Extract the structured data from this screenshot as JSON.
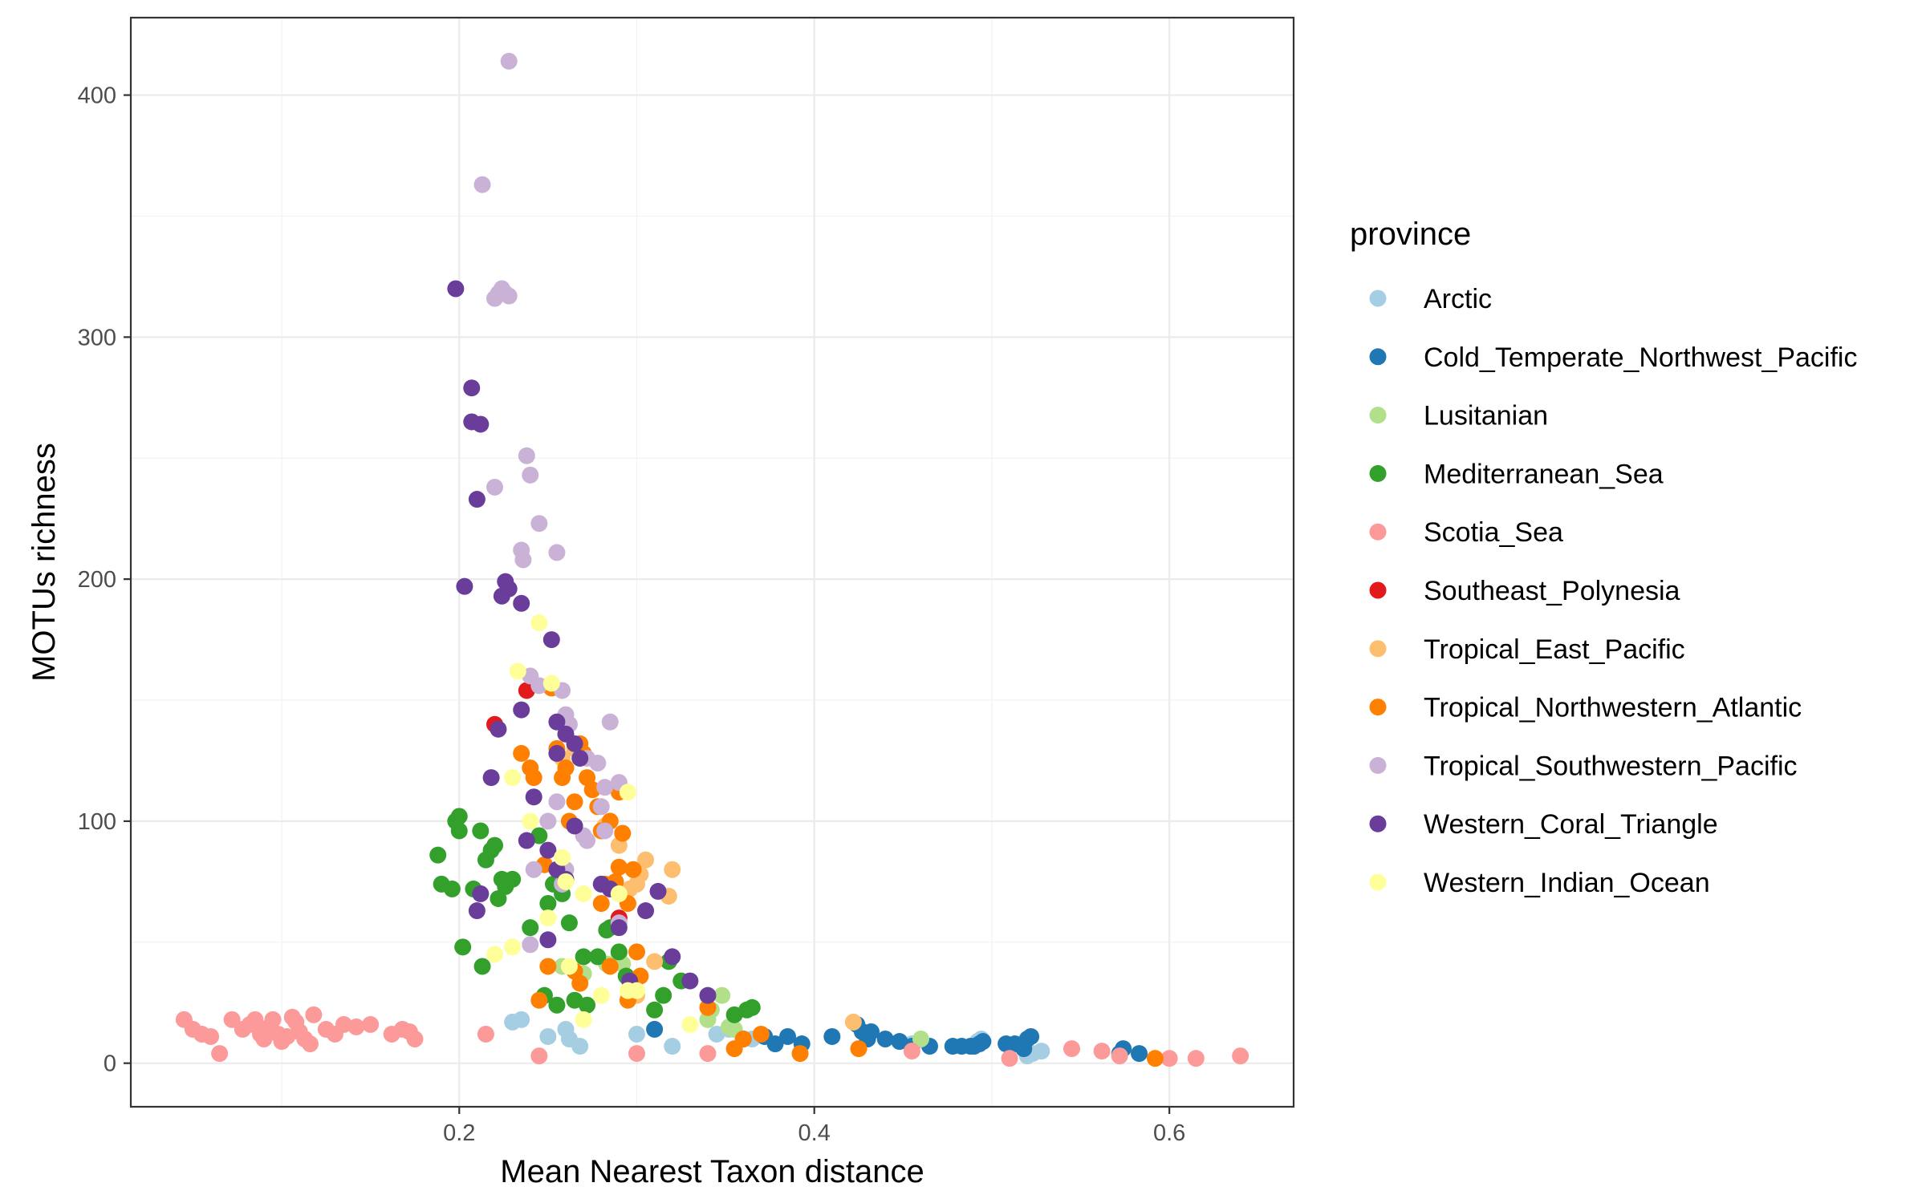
{
  "chart_data": {
    "type": "scatter",
    "title": "",
    "xlabel": "Mean Nearest Taxon distance",
    "ylabel": "MOTUs richness",
    "xlim": [
      0.015,
      0.67
    ],
    "ylim": [
      -18,
      432
    ],
    "x_ticks": [
      0.2,
      0.4,
      0.6
    ],
    "x_tick_labels": [
      "0.2",
      "0.4",
      "0.6"
    ],
    "y_ticks": [
      0,
      100,
      200,
      300,
      400
    ],
    "y_tick_labels": [
      "0",
      "100",
      "200",
      "300",
      "400"
    ],
    "grid": true,
    "legend_title": "province",
    "legend_position": "right",
    "series": [
      {
        "name": "Arctic",
        "color": "#A6CEE3",
        "points": [
          [
            0.23,
            17
          ],
          [
            0.235,
            18
          ],
          [
            0.25,
            11
          ],
          [
            0.26,
            14
          ],
          [
            0.262,
            10
          ],
          [
            0.268,
            7
          ],
          [
            0.3,
            12
          ],
          [
            0.32,
            7
          ],
          [
            0.345,
            12
          ],
          [
            0.352,
            14
          ],
          [
            0.365,
            10
          ],
          [
            0.52,
            3
          ],
          [
            0.523,
            4
          ],
          [
            0.528,
            5
          ],
          [
            0.492,
            9
          ],
          [
            0.494,
            10
          ],
          [
            0.455,
            8
          ]
        ]
      },
      {
        "name": "Cold_Temperate_Northwest_Pacific",
        "color": "#1F78B4",
        "points": [
          [
            0.31,
            14
          ],
          [
            0.36,
            10
          ],
          [
            0.372,
            11
          ],
          [
            0.378,
            8
          ],
          [
            0.385,
            11
          ],
          [
            0.393,
            8
          ],
          [
            0.41,
            11
          ],
          [
            0.424,
            16
          ],
          [
            0.427,
            13
          ],
          [
            0.43,
            10
          ],
          [
            0.432,
            13
          ],
          [
            0.44,
            10
          ],
          [
            0.448,
            9
          ],
          [
            0.455,
            7
          ],
          [
            0.465,
            7
          ],
          [
            0.478,
            7
          ],
          [
            0.483,
            7
          ],
          [
            0.488,
            7
          ],
          [
            0.49,
            7
          ],
          [
            0.493,
            8
          ],
          [
            0.495,
            9
          ],
          [
            0.508,
            8
          ],
          [
            0.513,
            8
          ],
          [
            0.518,
            6
          ],
          [
            0.522,
            11
          ],
          [
            0.52,
            10
          ],
          [
            0.572,
            4
          ],
          [
            0.574,
            6
          ],
          [
            0.583,
            4
          ]
        ]
      },
      {
        "name": "Lusitanian",
        "color": "#B2DF8A",
        "points": [
          [
            0.258,
            40
          ],
          [
            0.27,
            37
          ],
          [
            0.283,
            41
          ],
          [
            0.29,
            45
          ],
          [
            0.292,
            41
          ],
          [
            0.34,
            18
          ],
          [
            0.342,
            22
          ],
          [
            0.348,
            28
          ],
          [
            0.352,
            15
          ],
          [
            0.355,
            14
          ],
          [
            0.46,
            10
          ]
        ]
      },
      {
        "name": "Mediterranean_Sea",
        "color": "#33A02C",
        "points": [
          [
            0.188,
            86
          ],
          [
            0.19,
            74
          ],
          [
            0.196,
            72
          ],
          [
            0.198,
            100
          ],
          [
            0.2,
            102
          ],
          [
            0.2,
            96
          ],
          [
            0.202,
            48
          ],
          [
            0.208,
            72
          ],
          [
            0.212,
            96
          ],
          [
            0.213,
            40
          ],
          [
            0.215,
            84
          ],
          [
            0.218,
            88
          ],
          [
            0.22,
            90
          ],
          [
            0.222,
            68
          ],
          [
            0.224,
            76
          ],
          [
            0.226,
            73
          ],
          [
            0.23,
            76
          ],
          [
            0.24,
            56
          ],
          [
            0.245,
            94
          ],
          [
            0.248,
            28
          ],
          [
            0.25,
            66
          ],
          [
            0.253,
            74
          ],
          [
            0.255,
            24
          ],
          [
            0.258,
            70
          ],
          [
            0.262,
            58
          ],
          [
            0.265,
            26
          ],
          [
            0.27,
            44
          ],
          [
            0.272,
            24
          ],
          [
            0.278,
            44
          ],
          [
            0.283,
            55
          ],
          [
            0.285,
            56
          ],
          [
            0.29,
            46
          ],
          [
            0.294,
            36
          ],
          [
            0.31,
            22
          ],
          [
            0.315,
            28
          ],
          [
            0.318,
            42
          ],
          [
            0.325,
            34
          ],
          [
            0.355,
            20
          ],
          [
            0.362,
            22
          ],
          [
            0.365,
            23
          ]
        ]
      },
      {
        "name": "Scotia_Sea",
        "color": "#FB9A99",
        "points": [
          [
            0.045,
            18
          ],
          [
            0.05,
            14
          ],
          [
            0.055,
            12
          ],
          [
            0.06,
            11
          ],
          [
            0.065,
            4
          ],
          [
            0.072,
            18
          ],
          [
            0.078,
            14
          ],
          [
            0.082,
            16
          ],
          [
            0.085,
            18
          ],
          [
            0.088,
            12
          ],
          [
            0.09,
            10
          ],
          [
            0.093,
            15
          ],
          [
            0.095,
            18
          ],
          [
            0.098,
            12
          ],
          [
            0.1,
            9
          ],
          [
            0.103,
            11
          ],
          [
            0.106,
            19
          ],
          [
            0.108,
            17
          ],
          [
            0.11,
            13
          ],
          [
            0.113,
            10
          ],
          [
            0.116,
            8
          ],
          [
            0.118,
            20
          ],
          [
            0.125,
            14
          ],
          [
            0.13,
            12
          ],
          [
            0.135,
            16
          ],
          [
            0.142,
            15
          ],
          [
            0.15,
            16
          ],
          [
            0.162,
            12
          ],
          [
            0.168,
            14
          ],
          [
            0.172,
            13
          ],
          [
            0.175,
            10
          ],
          [
            0.215,
            12
          ],
          [
            0.245,
            3
          ],
          [
            0.3,
            4
          ],
          [
            0.34,
            4
          ],
          [
            0.455,
            5
          ],
          [
            0.51,
            2
          ],
          [
            0.545,
            6
          ],
          [
            0.562,
            5
          ],
          [
            0.572,
            3
          ],
          [
            0.6,
            2
          ],
          [
            0.615,
            2
          ],
          [
            0.64,
            3
          ]
        ]
      },
      {
        "name": "Southeast_Polynesia",
        "color": "#E31A1C",
        "points": [
          [
            0.22,
            140
          ],
          [
            0.238,
            154
          ],
          [
            0.29,
            60
          ]
        ]
      },
      {
        "name": "Tropical_East_Pacific",
        "color": "#FDBF6F",
        "points": [
          [
            0.258,
            126
          ],
          [
            0.265,
            130
          ],
          [
            0.282,
            98
          ],
          [
            0.29,
            90
          ],
          [
            0.292,
            70
          ],
          [
            0.296,
            72
          ],
          [
            0.3,
            74
          ],
          [
            0.302,
            78
          ],
          [
            0.305,
            84
          ],
          [
            0.31,
            42
          ],
          [
            0.318,
            69
          ],
          [
            0.32,
            80
          ],
          [
            0.3,
            28
          ],
          [
            0.422,
            17
          ]
        ]
      },
      {
        "name": "Tropical_Northwestern_Atlantic",
        "color": "#FF7F00",
        "points": [
          [
            0.235,
            128
          ],
          [
            0.24,
            122
          ],
          [
            0.242,
            118
          ],
          [
            0.248,
            82
          ],
          [
            0.25,
            40
          ],
          [
            0.252,
            155
          ],
          [
            0.255,
            130
          ],
          [
            0.258,
            118
          ],
          [
            0.26,
            122
          ],
          [
            0.262,
            100
          ],
          [
            0.265,
            108
          ],
          [
            0.268,
            132
          ],
          [
            0.27,
            128
          ],
          [
            0.272,
            118
          ],
          [
            0.275,
            113
          ],
          [
            0.278,
            106
          ],
          [
            0.28,
            96
          ],
          [
            0.282,
            74
          ],
          [
            0.285,
            100
          ],
          [
            0.288,
            75
          ],
          [
            0.29,
            112
          ],
          [
            0.292,
            95
          ],
          [
            0.295,
            66
          ],
          [
            0.298,
            80
          ],
          [
            0.3,
            46
          ],
          [
            0.302,
            36
          ],
          [
            0.29,
            81
          ],
          [
            0.295,
            26
          ],
          [
            0.285,
            40
          ],
          [
            0.28,
            66
          ],
          [
            0.245,
            26
          ],
          [
            0.265,
            38
          ],
          [
            0.268,
            33
          ],
          [
            0.34,
            23
          ],
          [
            0.355,
            6
          ],
          [
            0.36,
            10
          ],
          [
            0.37,
            12
          ],
          [
            0.392,
            4
          ],
          [
            0.425,
            6
          ],
          [
            0.592,
            2
          ]
        ]
      },
      {
        "name": "Tropical_Southwestern_Pacific",
        "color": "#CAB2D6",
        "points": [
          [
            0.228,
            414
          ],
          [
            0.213,
            363
          ],
          [
            0.22,
            316
          ],
          [
            0.222,
            318
          ],
          [
            0.224,
            320
          ],
          [
            0.226,
            318
          ],
          [
            0.228,
            317
          ],
          [
            0.238,
            251
          ],
          [
            0.24,
            243
          ],
          [
            0.22,
            238
          ],
          [
            0.245,
            223
          ],
          [
            0.235,
            212
          ],
          [
            0.255,
            211
          ],
          [
            0.236,
            208
          ],
          [
            0.24,
            160
          ],
          [
            0.245,
            156
          ],
          [
            0.258,
            154
          ],
          [
            0.26,
            144
          ],
          [
            0.262,
            140
          ],
          [
            0.285,
            141
          ],
          [
            0.29,
            116
          ],
          [
            0.272,
            126
          ],
          [
            0.278,
            124
          ],
          [
            0.282,
            114
          ],
          [
            0.28,
            106
          ],
          [
            0.255,
            108
          ],
          [
            0.25,
            100
          ],
          [
            0.282,
            96
          ],
          [
            0.27,
            94
          ],
          [
            0.242,
            80
          ],
          [
            0.26,
            80
          ],
          [
            0.29,
            58
          ],
          [
            0.24,
            49
          ],
          [
            0.258,
            74
          ],
          [
            0.272,
            92
          ]
        ]
      },
      {
        "name": "Western_Coral_Triangle",
        "color": "#6A3D9A",
        "points": [
          [
            0.198,
            320
          ],
          [
            0.207,
            279
          ],
          [
            0.207,
            265
          ],
          [
            0.212,
            264
          ],
          [
            0.21,
            233
          ],
          [
            0.203,
            197
          ],
          [
            0.226,
            199
          ],
          [
            0.228,
            196
          ],
          [
            0.224,
            193
          ],
          [
            0.235,
            190
          ],
          [
            0.252,
            175
          ],
          [
            0.222,
            138
          ],
          [
            0.235,
            146
          ],
          [
            0.238,
            92
          ],
          [
            0.242,
            110
          ],
          [
            0.255,
            141
          ],
          [
            0.26,
            136
          ],
          [
            0.265,
            132
          ],
          [
            0.268,
            126
          ],
          [
            0.255,
            128
          ],
          [
            0.218,
            118
          ],
          [
            0.212,
            70
          ],
          [
            0.21,
            63
          ],
          [
            0.25,
            88
          ],
          [
            0.255,
            80
          ],
          [
            0.25,
            51
          ],
          [
            0.26,
            76
          ],
          [
            0.265,
            98
          ],
          [
            0.28,
            74
          ],
          [
            0.285,
            72
          ],
          [
            0.29,
            56
          ],
          [
            0.296,
            34
          ],
          [
            0.305,
            63
          ],
          [
            0.312,
            71
          ],
          [
            0.32,
            44
          ],
          [
            0.33,
            34
          ],
          [
            0.34,
            28
          ]
        ]
      },
      {
        "name": "Western_Indian_Ocean",
        "color": "#FFFF99",
        "points": [
          [
            0.233,
            162
          ],
          [
            0.245,
            182
          ],
          [
            0.252,
            157
          ],
          [
            0.24,
            100
          ],
          [
            0.23,
            118
          ],
          [
            0.258,
            85
          ],
          [
            0.26,
            75
          ],
          [
            0.27,
            70
          ],
          [
            0.23,
            48
          ],
          [
            0.22,
            45
          ],
          [
            0.25,
            60
          ],
          [
            0.262,
            40
          ],
          [
            0.27,
            18
          ],
          [
            0.28,
            28
          ],
          [
            0.295,
            30
          ],
          [
            0.33,
            16
          ],
          [
            0.29,
            70
          ],
          [
            0.295,
            112
          ],
          [
            0.3,
            30
          ]
        ]
      }
    ]
  }
}
